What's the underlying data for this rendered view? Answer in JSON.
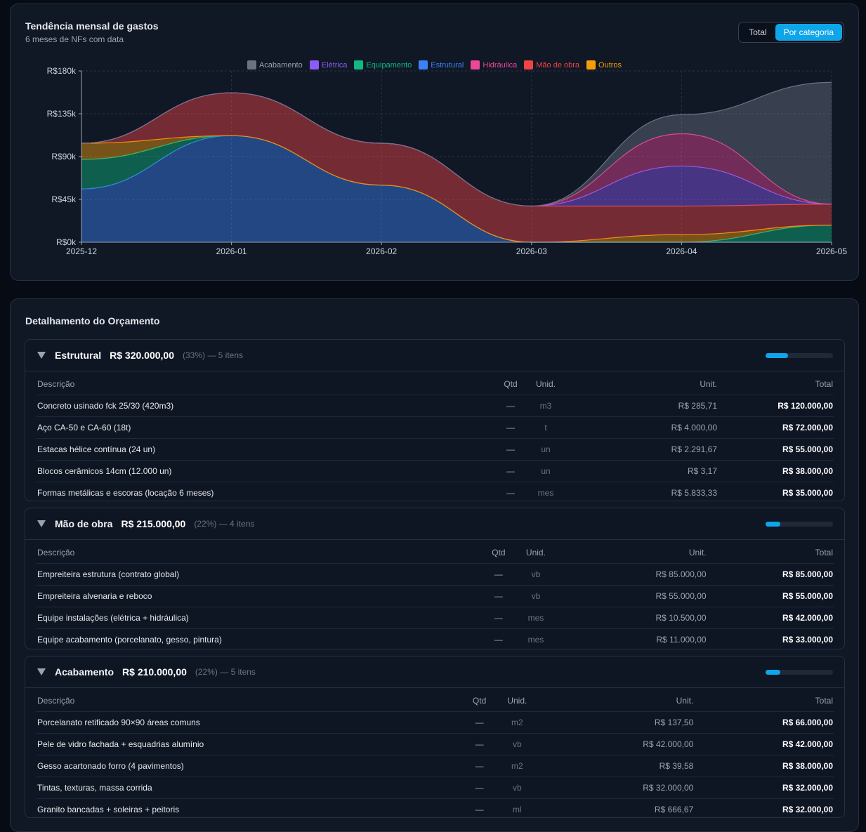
{
  "chart_card": {
    "title": "Tendência mensal de gastos",
    "subtitle": "6 meses de NFs com data",
    "toggle": {
      "total_label": "Total",
      "category_label": "Por categoria",
      "active": "category"
    }
  },
  "chart_data": {
    "type": "area",
    "stacked": true,
    "x": [
      "2025-12",
      "2026-01",
      "2026-02",
      "2026-03",
      "2026-04",
      "2026-05"
    ],
    "ylim": [
      0,
      180000
    ],
    "yticks": [
      "R$0k",
      "R$45k",
      "R$90k",
      "R$135k",
      "R$180k"
    ],
    "grid": true,
    "legend_position": "top-center",
    "series": [
      {
        "name": "Estrutural",
        "color": "#3b82f6",
        "values": [
          56000,
          112000,
          60000,
          0,
          0,
          0
        ]
      },
      {
        "name": "Equipamento",
        "color": "#10b981",
        "values": [
          31000,
          0,
          0,
          0,
          0,
          18000
        ]
      },
      {
        "name": "Outros",
        "color": "#f59e0b",
        "values": [
          17000,
          0,
          0,
          0,
          8000,
          0
        ]
      },
      {
        "name": "Mão de obra",
        "color": "#ef4444",
        "values": [
          0,
          45000,
          44000,
          38000,
          30000,
          22000
        ]
      },
      {
        "name": "Elétrica",
        "color": "#8b5cf6",
        "values": [
          0,
          0,
          0,
          0,
          42000,
          0
        ]
      },
      {
        "name": "Hidráulica",
        "color": "#ec4899",
        "values": [
          0,
          0,
          0,
          0,
          34000,
          0
        ]
      },
      {
        "name": "Acabamento",
        "color": "#6b7280",
        "values": [
          0,
          0,
          0,
          0,
          20000,
          128000
        ]
      }
    ],
    "legend_order": [
      "Acabamento",
      "Elétrica",
      "Equipamento",
      "Estrutural",
      "Hidráulica",
      "Mão de obra",
      "Outros"
    ]
  },
  "budget": {
    "title": "Detalhamento do Orçamento",
    "columns": {
      "desc": "Descrição",
      "qtd": "Qtd",
      "unid": "Unid.",
      "unit": "Unit.",
      "total": "Total"
    },
    "sections": [
      {
        "name": "Estrutural",
        "amount": "R$ 320.000,00",
        "meta": "(33%) — 5 itens",
        "share": 0.33,
        "rows": [
          {
            "desc": "Concreto usinado fck 25/30 (420m3)",
            "qtd": "—",
            "unid": "m3",
            "unit": "R$ 285,71",
            "total": "R$ 120.000,00"
          },
          {
            "desc": "Aço CA-50 e CA-60 (18t)",
            "qtd": "—",
            "unid": "t",
            "unit": "R$ 4.000,00",
            "total": "R$ 72.000,00"
          },
          {
            "desc": "Estacas hélice contínua (24 un)",
            "qtd": "—",
            "unid": "un",
            "unit": "R$ 2.291,67",
            "total": "R$ 55.000,00"
          },
          {
            "desc": "Blocos cerâmicos 14cm (12.000 un)",
            "qtd": "—",
            "unid": "un",
            "unit": "R$ 3,17",
            "total": "R$ 38.000,00"
          },
          {
            "desc": "Formas metálicas e escoras (locação 6 meses)",
            "qtd": "—",
            "unid": "mes",
            "unit": "R$ 5.833,33",
            "total": "R$ 35.000,00"
          }
        ]
      },
      {
        "name": "Mão de obra",
        "amount": "R$ 215.000,00",
        "meta": "(22%) — 4 itens",
        "share": 0.22,
        "rows": [
          {
            "desc": "Empreiteira estrutura (contrato global)",
            "qtd": "—",
            "unid": "vb",
            "unit": "R$ 85.000,00",
            "total": "R$ 85.000,00"
          },
          {
            "desc": "Empreiteira alvenaria e reboco",
            "qtd": "—",
            "unid": "vb",
            "unit": "R$ 55.000,00",
            "total": "R$ 55.000,00"
          },
          {
            "desc": "Equipe instalações (elétrica + hidráulica)",
            "qtd": "—",
            "unid": "mes",
            "unit": "R$ 10.500,00",
            "total": "R$ 42.000,00"
          },
          {
            "desc": "Equipe acabamento (porcelanato, gesso, pintura)",
            "qtd": "—",
            "unid": "mes",
            "unit": "R$ 11.000,00",
            "total": "R$ 33.000,00"
          }
        ]
      },
      {
        "name": "Acabamento",
        "amount": "R$ 210.000,00",
        "meta": "(22%) — 5 itens",
        "share": 0.22,
        "rows": [
          {
            "desc": "Porcelanato retificado 90×90 áreas comuns",
            "qtd": "—",
            "unid": "m2",
            "unit": "R$ 137,50",
            "total": "R$ 66.000,00"
          },
          {
            "desc": "Pele de vidro fachada + esquadrias alumínio",
            "qtd": "—",
            "unid": "vb",
            "unit": "R$ 42.000,00",
            "total": "R$ 42.000,00"
          },
          {
            "desc": "Gesso acartonado forro (4 pavimentos)",
            "qtd": "—",
            "unid": "m2",
            "unit": "R$ 39,58",
            "total": "R$ 38.000,00"
          },
          {
            "desc": "Tintas, texturas, massa corrida",
            "qtd": "—",
            "unid": "vb",
            "unit": "R$ 32.000,00",
            "total": "R$ 32.000,00"
          },
          {
            "desc": "Granito bancadas + soleiras + peitoris",
            "qtd": "—",
            "unid": "ml",
            "unit": "R$ 666,67",
            "total": "R$ 32.000,00"
          }
        ]
      }
    ]
  }
}
